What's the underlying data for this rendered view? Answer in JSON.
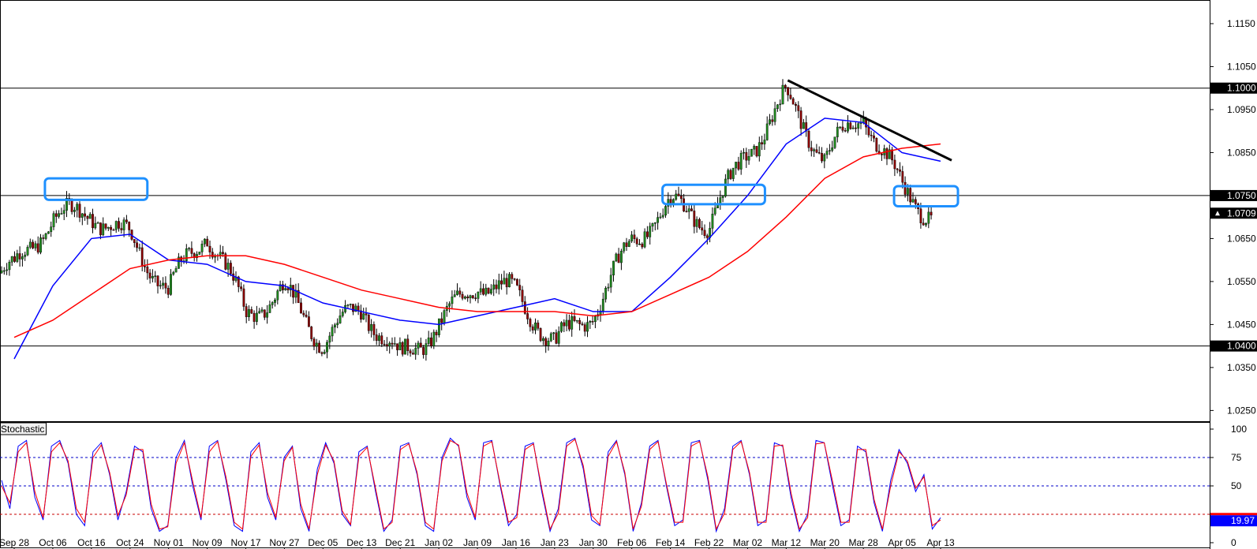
{
  "chart_data": [
    {
      "type": "candlestick",
      "panel": "price",
      "y_axis_ticks": [
        "1.1150",
        "1.1050",
        "1.0950",
        "1.0850",
        "1.0650",
        "1.0550",
        "1.0450",
        "1.0350",
        "1.0250"
      ],
      "ylim": [
        1.0225,
        1.1205
      ],
      "x_tick_labels": [
        "Sep 28",
        "Oct 06",
        "Oct 16",
        "Oct 24",
        "Nov 01",
        "Nov 09",
        "Nov 17",
        "Nov 27",
        "Dec 05",
        "Dec 13",
        "Dec 21",
        "Jan 02",
        "Jan 09",
        "Jan 16",
        "Jan 23",
        "Jan 30",
        "Feb 06",
        "Feb 14",
        "Feb 22",
        "Mar 02",
        "Mar 12",
        "Mar 20",
        "Mar 28",
        "Apr 05",
        "Apr 13"
      ],
      "horizontal_levels": [
        {
          "value": 1.1,
          "label": "1.1000"
        },
        {
          "value": 1.075,
          "label": "1.0750"
        },
        {
          "value": 1.04,
          "label": "1.0400"
        }
      ],
      "current_price": {
        "value": 1.0709,
        "label": "1.0709"
      },
      "price_path": [
        {
          "date": "Sep 28",
          "close": 1.057
        },
        {
          "date": "Oct 06",
          "close": 1.068
        },
        {
          "date": "Oct 16",
          "close": 1.072
        },
        {
          "date": "Oct 24",
          "close": 1.067
        },
        {
          "date": "Nov 01",
          "close": 1.052
        },
        {
          "date": "Nov 09",
          "close": 1.065
        },
        {
          "date": "Nov 17",
          "close": 1.048
        },
        {
          "date": "Nov 27",
          "close": 1.055
        },
        {
          "date": "Dec 05",
          "close": 1.041
        },
        {
          "date": "Dec 13",
          "close": 1.047
        },
        {
          "date": "Dec 21",
          "close": 1.037
        },
        {
          "date": "Jan 02",
          "close": 1.047
        },
        {
          "date": "Jan 09",
          "close": 1.055
        },
        {
          "date": "Jan 16",
          "close": 1.05
        },
        {
          "date": "Jan 23",
          "close": 1.04
        },
        {
          "date": "Jan 30",
          "close": 1.05
        },
        {
          "date": "Feb 06",
          "close": 1.065
        },
        {
          "date": "Feb 14",
          "close": 1.071
        },
        {
          "date": "Feb 22",
          "close": 1.068
        },
        {
          "date": "Mar 02",
          "close": 1.087
        },
        {
          "date": "Mar 12",
          "close": 1.099
        },
        {
          "date": "Mar 20",
          "close": 1.082
        },
        {
          "date": "Mar 28",
          "close": 1.093
        },
        {
          "date": "Apr 05",
          "close": 1.078
        },
        {
          "date": "Apr 13",
          "close": 1.0709
        }
      ],
      "moving_averages": [
        {
          "color": "#0000ff",
          "values": [
            1.037,
            1.054,
            1.065,
            1.066,
            1.06,
            1.059,
            1.055,
            1.054,
            1.05,
            1.048,
            1.046,
            1.045,
            1.047,
            1.049,
            1.051,
            1.048,
            1.048,
            1.056,
            1.065,
            1.075,
            1.087,
            1.093,
            1.092,
            1.085,
            1.083
          ]
        },
        {
          "color": "#ff0000",
          "values": [
            1.042,
            1.046,
            1.052,
            1.058,
            1.06,
            1.061,
            1.061,
            1.059,
            1.056,
            1.053,
            1.051,
            1.049,
            1.048,
            1.048,
            1.048,
            1.047,
            1.048,
            1.052,
            1.056,
            1.062,
            1.07,
            1.079,
            1.084,
            1.086,
            1.087
          ]
        }
      ],
      "trendline": {
        "from": {
          "date": "Mar 12",
          "value": 1.1018
        },
        "to": {
          "date": "Apr 13",
          "value": 1.0832
        }
      },
      "annotations": [
        {
          "shape": "rounded-box",
          "color": "#1e90ff",
          "from": "Oct 06",
          "to": "Oct 24",
          "ymin": 1.074,
          "ymax": 1.079
        },
        {
          "shape": "rounded-box",
          "color": "#1e90ff",
          "from": "Feb 14",
          "to": "Mar 02",
          "ymin": 1.073,
          "ymax": 1.0775
        },
        {
          "shape": "rounded-box",
          "color": "#1e90ff",
          "from": "Apr 05",
          "to": "Apr 13",
          "ymin": 1.0725,
          "ymax": 1.0772
        }
      ]
    },
    {
      "type": "line",
      "panel": "oscillator",
      "title": "Stochastic",
      "y_axis_ticks": [
        "100",
        "75",
        "50",
        "0"
      ],
      "ylim": [
        0,
        100
      ],
      "levels": [
        {
          "value": 75,
          "color": "#0000c8"
        },
        {
          "value": 50,
          "color": "#0000c8"
        },
        {
          "value": 25,
          "color": "#c80000"
        }
      ],
      "current_value": {
        "value": 19.97,
        "label": "19.97"
      },
      "series": [
        {
          "color": "#0000ff",
          "values": [
            55,
            30,
            85,
            90,
            40,
            20,
            85,
            90,
            70,
            25,
            15,
            80,
            88,
            60,
            20,
            45,
            85,
            80,
            30,
            10,
            15,
            75,
            90,
            50,
            20,
            85,
            90,
            55,
            15,
            10,
            80,
            88,
            40,
            20,
            75,
            85,
            30,
            10,
            65,
            88,
            70,
            25,
            15,
            80,
            85,
            45,
            10,
            20,
            85,
            88,
            60,
            15,
            10,
            75,
            92,
            85,
            40,
            20,
            88,
            90,
            50,
            15,
            25,
            85,
            88,
            45,
            10,
            30,
            88,
            92,
            65,
            20,
            15,
            80,
            90,
            60,
            10,
            35,
            85,
            90,
            50,
            15,
            20,
            88,
            90,
            55,
            10,
            30,
            85,
            90,
            60,
            15,
            20,
            88,
            85,
            40,
            10,
            25,
            90,
            88,
            50,
            15,
            20,
            85,
            80,
            35,
            10,
            55,
            82,
            70,
            45,
            60,
            12,
            22
          ]
        },
        {
          "color": "#ff0000",
          "values": [
            50,
            35,
            80,
            88,
            45,
            22,
            80,
            88,
            72,
            30,
            18,
            75,
            86,
            62,
            24,
            42,
            82,
            82,
            34,
            12,
            14,
            70,
            88,
            54,
            22,
            80,
            89,
            58,
            18,
            12,
            76,
            86,
            44,
            22,
            72,
            84,
            34,
            12,
            60,
            86,
            72,
            28,
            16,
            76,
            84,
            48,
            12,
            18,
            82,
            87,
            62,
            18,
            12,
            72,
            90,
            86,
            44,
            22,
            85,
            89,
            52,
            18,
            22,
            82,
            87,
            48,
            12,
            26,
            85,
            91,
            68,
            24,
            16,
            76,
            89,
            62,
            12,
            32,
            82,
            89,
            52,
            18,
            18,
            85,
            89,
            58,
            12,
            26,
            82,
            89,
            62,
            18,
            18,
            85,
            86,
            44,
            12,
            22,
            87,
            88,
            54,
            18,
            18,
            82,
            82,
            38,
            12,
            50,
            80,
            72,
            48,
            58,
            15,
            20
          ]
        }
      ]
    }
  ]
}
